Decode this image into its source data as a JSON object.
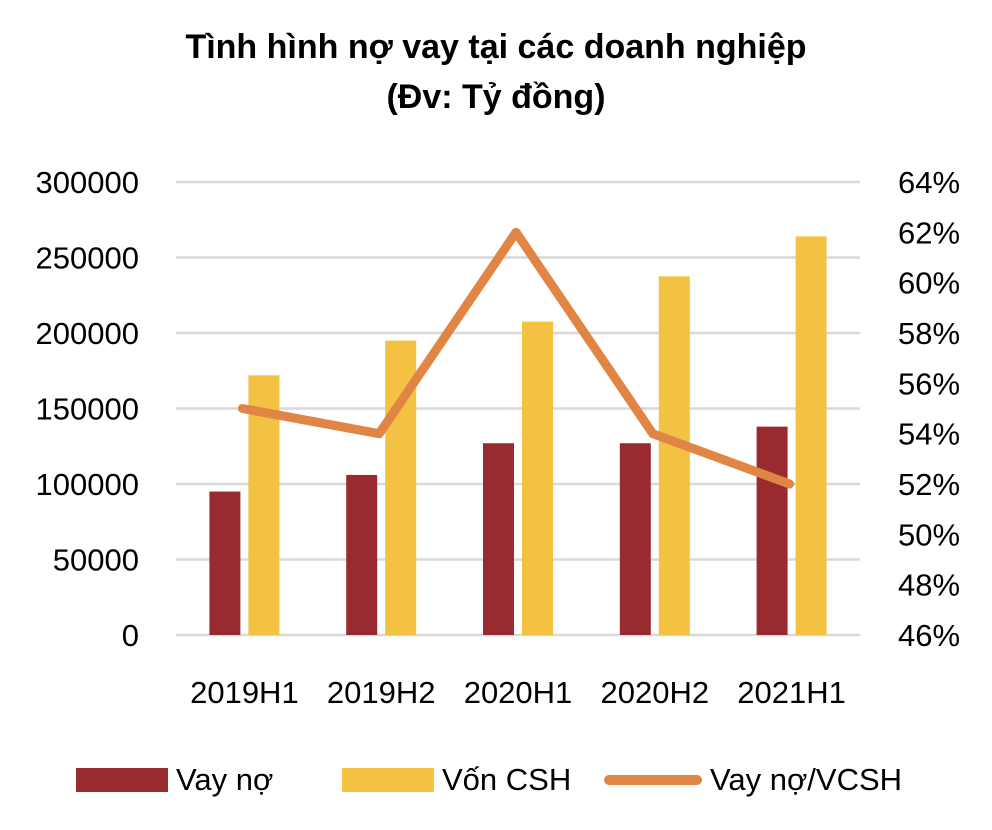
{
  "title": {
    "line1": "Tình hình nợ vay tại các doanh nghiệp",
    "line2": "(Đv: Tỷ đồng)"
  },
  "colors": {
    "vay_no": "#992B30",
    "von_csh": "#F4C242",
    "ratio_line": "#E08543",
    "grid": "#D9D9D9"
  },
  "axes": {
    "left_ticks": [
      "0",
      "50000",
      "100000",
      "150000",
      "200000",
      "250000",
      "300000"
    ],
    "right_ticks": [
      "46%",
      "48%",
      "50%",
      "52%",
      "54%",
      "56%",
      "58%",
      "60%",
      "62%",
      "64%"
    ],
    "x_ticks": [
      "2019H1",
      "2019H2",
      "2020H1",
      "2020H2",
      "2021H1"
    ]
  },
  "legend": {
    "items": [
      {
        "label": "Vay nợ",
        "type": "bar"
      },
      {
        "label": "Vốn CSH",
        "type": "bar"
      },
      {
        "label": "Vay nợ/VCSH",
        "type": "line"
      }
    ]
  },
  "chart_data": {
    "type": "bar",
    "title": "Tình hình nợ vay tại các doanh nghiệp (Đv: Tỷ đồng)",
    "categories": [
      "2019H1",
      "2019H2",
      "2020H1",
      "2020H2",
      "2021H1"
    ],
    "series": [
      {
        "name": "Vay nợ",
        "type": "bar",
        "axis": "left",
        "values": [
          95000,
          106000,
          127000,
          127000,
          138000
        ]
      },
      {
        "name": "Vốn CSH",
        "type": "bar",
        "axis": "left",
        "values": [
          172000,
          195000,
          207500,
          237500,
          264000
        ]
      },
      {
        "name": "Vay nợ/VCSH",
        "type": "line",
        "axis": "right",
        "values": [
          55,
          54,
          62,
          54,
          52
        ],
        "unit": "%"
      }
    ],
    "xlabel": "",
    "ylabel": "",
    "ylim": [
      0,
      300000
    ],
    "y2lim": [
      46,
      64
    ],
    "y_ticks": [
      0,
      50000,
      100000,
      150000,
      200000,
      250000,
      300000
    ],
    "y2_ticks": [
      46,
      48,
      50,
      52,
      54,
      56,
      58,
      60,
      62,
      64
    ],
    "grid": true,
    "legend_position": "bottom"
  }
}
